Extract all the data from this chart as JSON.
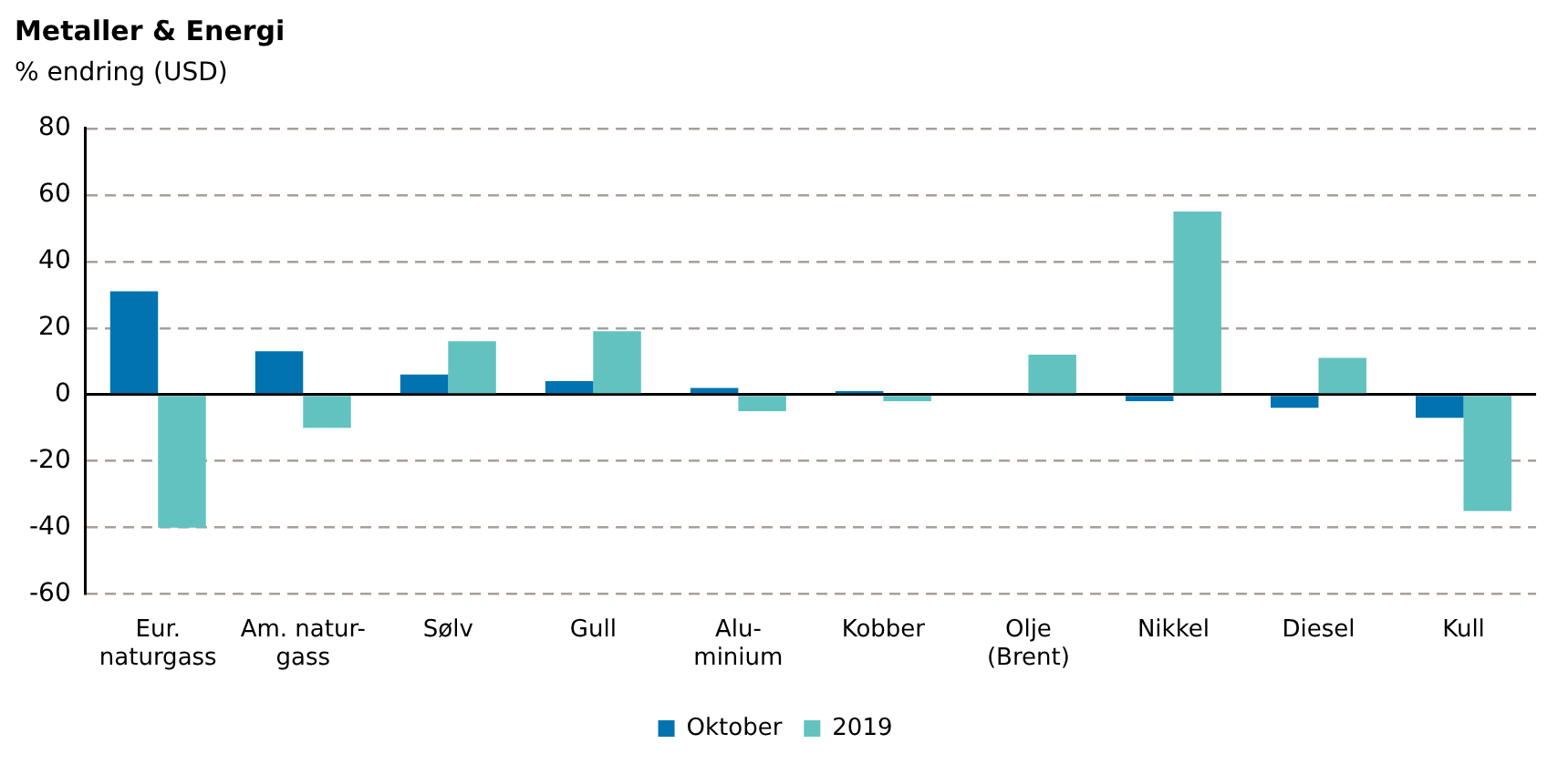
{
  "chart_data": {
    "type": "bar",
    "title": "Metaller & Energi",
    "ylabel": "% endring (USD)",
    "categories": [
      "Eur.\nnaturgass",
      "Am. natur-\ngass",
      "Sølv",
      "Gull",
      "Alu-\nminium",
      "Kobber",
      "Olje\n(Brent)",
      "Nikkel",
      "Diesel",
      "Kull"
    ],
    "series": [
      {
        "name": "Oktober",
        "color": "#0073b0",
        "values": [
          31,
          13,
          6,
          4,
          2,
          1,
          0,
          -2,
          -4,
          -7
        ]
      },
      {
        "name": "2019",
        "color": "#62c2bf",
        "values": [
          -40,
          -10,
          16,
          19,
          -5,
          -2,
          12,
          55,
          11,
          -35
        ]
      }
    ],
    "ylim": [
      -60,
      80
    ],
    "yticks": [
      -60,
      -40,
      -20,
      0,
      20,
      40,
      60,
      80
    ],
    "grid": "y",
    "legend": "bottom"
  }
}
